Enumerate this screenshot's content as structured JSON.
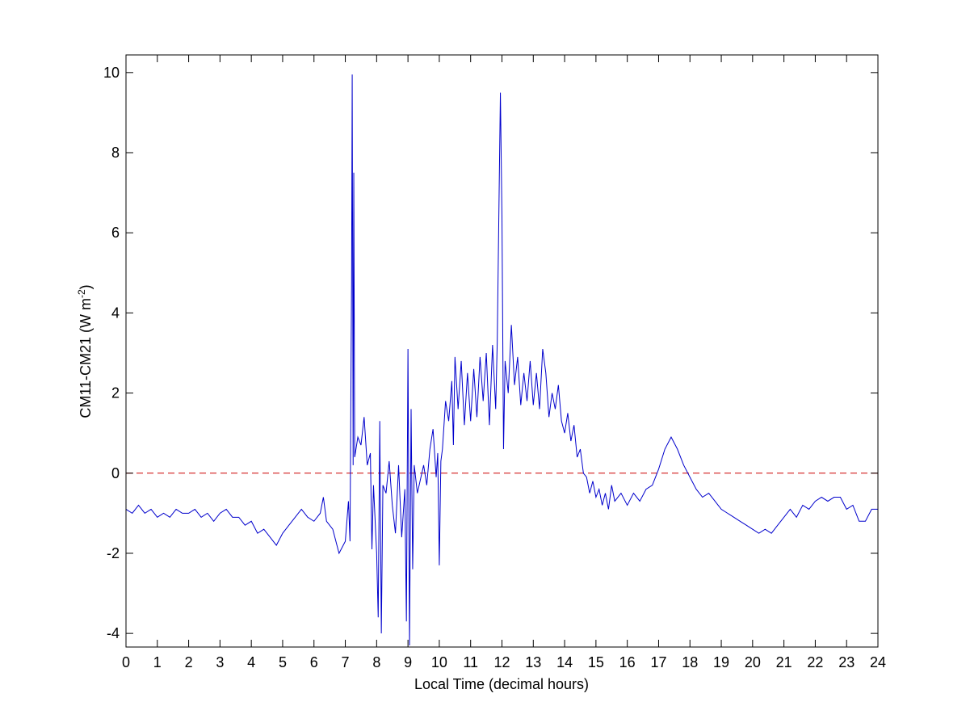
{
  "chart_data": {
    "type": "line",
    "xlabel": "Local Time (decimal hours)",
    "ylabel": {
      "text": "CM11-CM21 (W m",
      "sup": "-2",
      "end": ")"
    },
    "xlim": [
      0,
      24
    ],
    "ylim": [
      -4.34,
      10.44
    ],
    "xticks": [
      0,
      1,
      2,
      3,
      4,
      5,
      6,
      7,
      8,
      9,
      10,
      11,
      12,
      13,
      14,
      15,
      16,
      17,
      18,
      19,
      20,
      21,
      22,
      23,
      24
    ],
    "yticks": [
      -4,
      -2,
      0,
      2,
      4,
      6,
      8,
      10
    ],
    "hline": {
      "value": 0,
      "color": "#cc0000",
      "dashed": true
    },
    "x": [
      0,
      0.2,
      0.4,
      0.6,
      0.8,
      1.0,
      1.2,
      1.4,
      1.6,
      1.8,
      2.0,
      2.2,
      2.4,
      2.6,
      2.8,
      3.0,
      3.2,
      3.4,
      3.6,
      3.8,
      4.0,
      4.2,
      4.4,
      4.6,
      4.8,
      5.0,
      5.2,
      5.4,
      5.6,
      5.8,
      6.0,
      6.2,
      6.3,
      6.4,
      6.6,
      6.8,
      7.0,
      7.1,
      7.15,
      7.2,
      7.22,
      7.25,
      7.27,
      7.3,
      7.4,
      7.5,
      7.6,
      7.7,
      7.8,
      7.85,
      7.9,
      8.0,
      8.05,
      8.1,
      8.15,
      8.2,
      8.3,
      8.4,
      8.5,
      8.6,
      8.7,
      8.8,
      8.9,
      8.95,
      9.0,
      9.05,
      9.1,
      9.15,
      9.2,
      9.3,
      9.5,
      9.6,
      9.7,
      9.8,
      9.9,
      9.95,
      10.0,
      10.05,
      10.1,
      10.2,
      10.3,
      10.4,
      10.45,
      10.5,
      10.6,
      10.7,
      10.8,
      10.9,
      11.0,
      11.1,
      11.2,
      11.3,
      11.4,
      11.5,
      11.6,
      11.7,
      11.8,
      11.85,
      11.95,
      12.0,
      12.05,
      12.1,
      12.2,
      12.3,
      12.4,
      12.5,
      12.6,
      12.7,
      12.8,
      12.9,
      13.0,
      13.1,
      13.2,
      13.3,
      13.4,
      13.5,
      13.6,
      13.7,
      13.8,
      13.9,
      14.0,
      14.1,
      14.2,
      14.3,
      14.4,
      14.5,
      14.6,
      14.7,
      14.8,
      14.9,
      15.0,
      15.1,
      15.2,
      15.3,
      15.4,
      15.5,
      15.6,
      15.8,
      16.0,
      16.2,
      16.4,
      16.6,
      16.8,
      17.0,
      17.2,
      17.4,
      17.6,
      17.8,
      18.0,
      18.2,
      18.4,
      18.6,
      18.8,
      19.0,
      19.2,
      19.4,
      19.6,
      19.8,
      20.0,
      20.2,
      20.4,
      20.6,
      20.8,
      21.0,
      21.2,
      21.4,
      21.6,
      21.8,
      22.0,
      22.2,
      22.4,
      22.6,
      22.8,
      23.0,
      23.2,
      23.4,
      23.6,
      23.8,
      24.0
    ],
    "series": [
      {
        "color": "#0000cc",
        "values": [
          -0.9,
          -1.0,
          -0.8,
          -1.0,
          -0.9,
          -1.1,
          -1.0,
          -1.1,
          -0.9,
          -1.0,
          -1.0,
          -0.9,
          -1.1,
          -1.0,
          -1.2,
          -1.0,
          -0.9,
          -1.1,
          -1.1,
          -1.3,
          -1.2,
          -1.5,
          -1.4,
          -1.6,
          -1.8,
          -1.5,
          -1.3,
          -1.1,
          -0.9,
          -1.1,
          -1.2,
          -1.0,
          -0.6,
          -1.2,
          -1.4,
          -2.0,
          -1.7,
          -0.7,
          -1.7,
          4.8,
          9.95,
          0.2,
          7.5,
          0.4,
          0.9,
          0.7,
          1.4,
          0.2,
          0.5,
          -1.9,
          -0.3,
          -2.0,
          -3.6,
          1.3,
          -4.0,
          -0.3,
          -0.5,
          0.3,
          -0.8,
          -1.5,
          0.2,
          -1.6,
          -0.4,
          -3.7,
          3.1,
          -4.3,
          1.6,
          -2.4,
          0.2,
          -0.5,
          0.2,
          -0.3,
          0.6,
          1.1,
          -0.1,
          0.5,
          -2.3,
          0.3,
          0.6,
          1.8,
          1.3,
          2.3,
          0.7,
          2.9,
          1.6,
          2.8,
          1.2,
          2.5,
          1.3,
          2.6,
          1.4,
          2.9,
          1.8,
          3.0,
          1.2,
          3.2,
          1.6,
          3.3,
          9.5,
          6.4,
          0.6,
          2.8,
          2.0,
          3.7,
          2.2,
          2.9,
          1.7,
          2.5,
          1.8,
          2.8,
          1.7,
          2.5,
          1.6,
          3.1,
          2.5,
          1.4,
          2.0,
          1.6,
          2.2,
          1.3,
          1.0,
          1.5,
          0.8,
          1.2,
          0.4,
          0.6,
          0.0,
          -0.1,
          -0.5,
          -0.2,
          -0.6,
          -0.4,
          -0.8,
          -0.5,
          -0.9,
          -0.3,
          -0.7,
          -0.5,
          -0.8,
          -0.5,
          -0.7,
          -0.4,
          -0.3,
          0.1,
          0.6,
          0.9,
          0.6,
          0.2,
          -0.1,
          -0.4,
          -0.6,
          -0.5,
          -0.7,
          -0.9,
          -1.0,
          -1.1,
          -1.2,
          -1.3,
          -1.4,
          -1.5,
          -1.4,
          -1.5,
          -1.3,
          -1.1,
          -0.9,
          -1.1,
          -0.8,
          -0.9,
          -0.7,
          -0.6,
          -0.7,
          -0.6,
          -0.6,
          -0.9,
          -0.8,
          -1.2,
          -1.2,
          -0.9,
          -0.9
        ]
      }
    ]
  }
}
